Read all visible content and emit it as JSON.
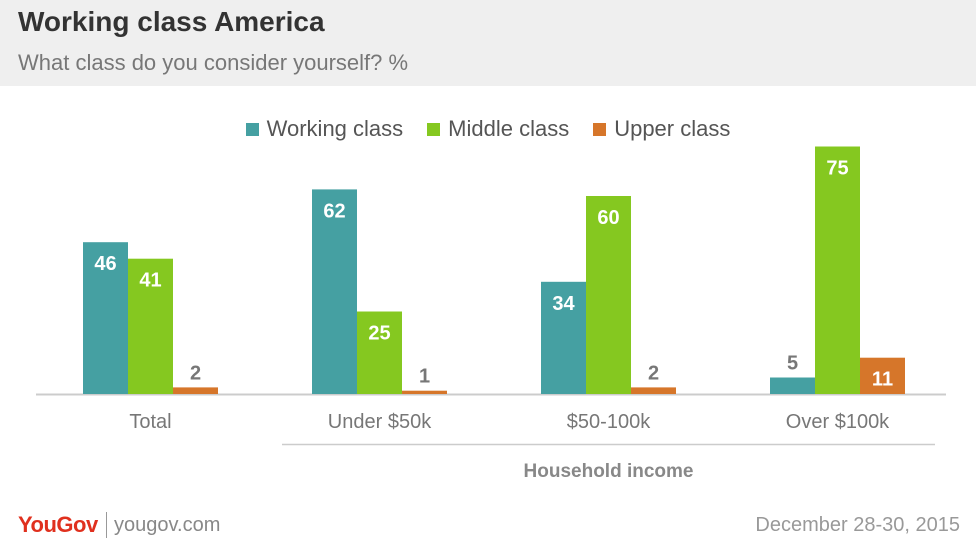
{
  "header": {
    "title": "Working class America",
    "subtitle": "What class do you consider yourself? %"
  },
  "footer": {
    "logo": "YouGov",
    "site": "yougov.com",
    "date": "December 28-30, 2015"
  },
  "chart_data": {
    "type": "bar",
    "categories": [
      "Total",
      "Under $50k",
      "$50-100k",
      "Over $100k"
    ],
    "series": [
      {
        "name": "Working class",
        "color": "#45a0a2",
        "values": [
          46,
          62,
          34,
          5
        ]
      },
      {
        "name": "Middle class",
        "color": "#85c820",
        "values": [
          41,
          25,
          60,
          75
        ]
      },
      {
        "name": "Upper class",
        "color": "#d6762a",
        "values": [
          2,
          1,
          2,
          11
        ]
      }
    ],
    "group_label": "Household income",
    "group_label_spans": [
      "Under $50k",
      "$50-100k",
      "Over $100k"
    ],
    "ylim": [
      0,
      80
    ],
    "grid": false,
    "legend_position": "top-center",
    "data_label_colors": {
      "inside": "#ffffff",
      "outside": "#777777"
    }
  }
}
